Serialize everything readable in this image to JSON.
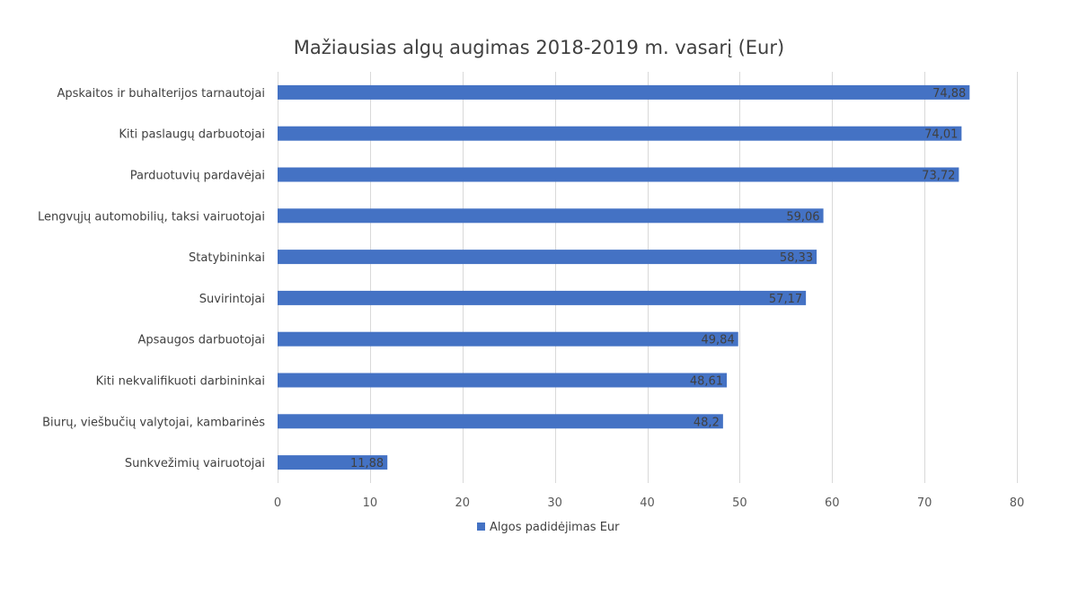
{
  "chart_data": {
    "type": "bar",
    "orientation": "horizontal",
    "title": "Mažiausias algų augimas 2018-2019 m. vasarį (Eur)",
    "categories": [
      "Apskaitos ir buhalterijos tarnautojai",
      "Kiti paslaugų darbuotojai",
      "Parduotuvių pardavėjai",
      "Lengvųjų automobilių, taksi vairuotojai",
      "Statybininkai",
      "Suvirintojai",
      "Apsaugos darbuotojai",
      "Kiti nekvalifikuoti darbininkai",
      "Biurų, viešbučių valytojai, kambarinės",
      "Sunkvežimių vairuotojai"
    ],
    "series": [
      {
        "name": "Algos padidėjimas Eur",
        "color": "#4472c4",
        "values": [
          74.88,
          74.01,
          73.72,
          59.06,
          58.33,
          57.17,
          49.84,
          48.61,
          48.2,
          11.88
        ],
        "labels": [
          "74,88",
          "74,01",
          "73,72",
          "59,06",
          "58,33",
          "57,17",
          "49,84",
          "48,61",
          "48,2",
          "11,88"
        ]
      }
    ],
    "xlim": [
      0,
      80
    ],
    "ticks": [
      0,
      10,
      20,
      30,
      40,
      50,
      60,
      70,
      80
    ],
    "tick_labels": [
      "0",
      "10",
      "20",
      "30",
      "40",
      "50",
      "60",
      "70",
      "80"
    ],
    "grid": true,
    "legend_position": "bottom"
  }
}
